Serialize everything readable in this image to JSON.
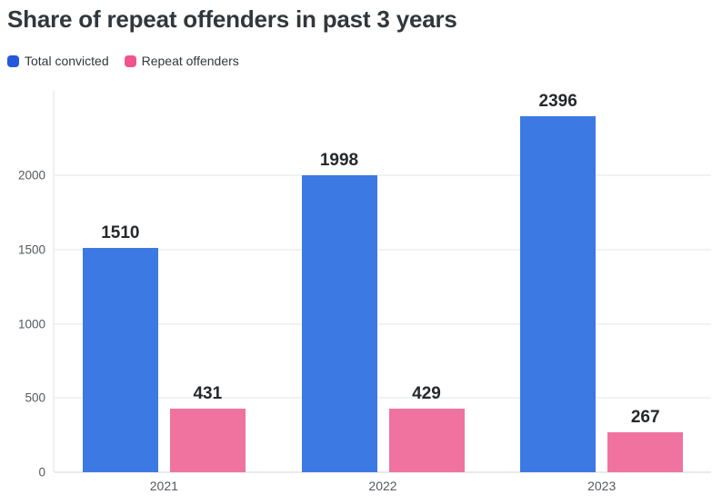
{
  "title": "Share of repeat offenders in past 3 years",
  "legend": {
    "items": [
      {
        "label": "Total convicted",
        "color": "#2458dd"
      },
      {
        "label": "Repeat offenders",
        "color": "#f1538f"
      }
    ]
  },
  "colors": {
    "total_convicted_bar": "#3d79e3",
    "repeat_offenders_bar": "#f0739f",
    "gridline": "#f1f2f4",
    "axis_text": "#55595e",
    "value_label_text": "#26292c",
    "title_text": "#32373b",
    "background": "#ffffff"
  },
  "chart_data": {
    "type": "bar",
    "title": "Share of repeat offenders in past 3 years",
    "categories": [
      "2021",
      "2022",
      "2023"
    ],
    "series": [
      {
        "name": "Total convicted",
        "color": "#3d79e3",
        "values": [
          1510,
          1998,
          2396
        ]
      },
      {
        "name": "Repeat offenders",
        "color": "#f0739f",
        "values": [
          431,
          429,
          267
        ]
      }
    ],
    "xlabel": "",
    "ylabel": "",
    "yticks": [
      0,
      500,
      1000,
      1500,
      2000
    ],
    "ylim": [
      0,
      2570
    ],
    "grid": true,
    "legend_position": "top-left",
    "value_labels": true
  }
}
